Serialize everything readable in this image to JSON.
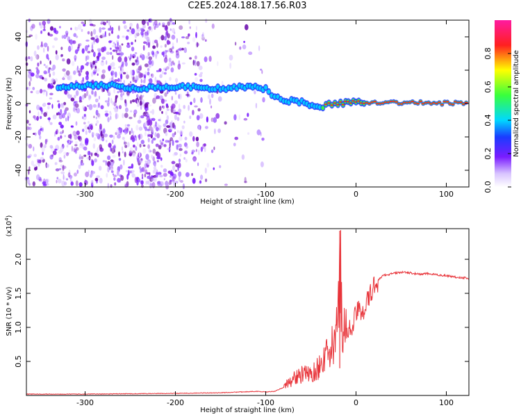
{
  "title": "C2E5.2024.188.17.56.R03",
  "colors": {
    "snr_line": "#e8343a",
    "axes": "#000000",
    "spectrum_base": "#7a1cff"
  },
  "chart_data": [
    {
      "type": "heatmap",
      "name": "spectrogram",
      "xlabel": "Height of straight line (km)",
      "ylabel": "Frequency (Hz)",
      "xlim": [
        -365,
        125
      ],
      "ylim": [
        -50,
        50
      ],
      "xticks": [
        -300,
        -200,
        -100,
        0,
        100
      ],
      "xtick_labels": [
        "-300",
        "-200",
        "-100",
        "0",
        "100"
      ],
      "yticks": [
        40,
        20,
        0,
        -20,
        -40
      ],
      "ytick_labels": [
        "40",
        "20",
        "0",
        "-20",
        "-40"
      ],
      "ridge": [
        {
          "x": -330,
          "y": 10
        },
        {
          "x": -300,
          "y": 11
        },
        {
          "x": -270,
          "y": 11
        },
        {
          "x": -250,
          "y": 9
        },
        {
          "x": -210,
          "y": 10
        },
        {
          "x": -180,
          "y": 10
        },
        {
          "x": -150,
          "y": 9
        },
        {
          "x": -120,
          "y": 10
        },
        {
          "x": -100,
          "y": 9
        },
        {
          "x": -90,
          "y": 4
        },
        {
          "x": -80,
          "y": 2
        },
        {
          "x": -60,
          "y": 1
        },
        {
          "x": -40,
          "y": -3
        },
        {
          "x": -30,
          "y": 0
        },
        {
          "x": -20,
          "y": 0
        },
        {
          "x": 0,
          "y": 1
        },
        {
          "x": 125,
          "y": 0
        }
      ],
      "colorbar": {
        "label": "Normalized spectral amplitude",
        "ticks": [
          0.0,
          0.2,
          0.4,
          0.6,
          0.8
        ],
        "tick_labels": [
          "0.0",
          "0.2",
          "0.4",
          "0.6",
          "0.8"
        ],
        "range": [
          0,
          1
        ]
      }
    },
    {
      "type": "line",
      "name": "snr",
      "xlabel": "Height of straight line (km)",
      "ylabel": "SNR (10 * v/v)",
      "multiplier_label": "(x10",
      "multiplier_exp": "4",
      "multiplier_close": ")",
      "xlim": [
        -365,
        125
      ],
      "ylim": [
        0,
        2.45
      ],
      "xticks": [
        -300,
        -200,
        -100,
        0,
        100
      ],
      "xtick_labels": [
        "-300",
        "-200",
        "-100",
        "0",
        "100"
      ],
      "yticks": [
        0.5,
        1.0,
        1.5,
        2.0
      ],
      "ytick_labels": [
        "0.5",
        "1.0",
        "1.5",
        "2.0"
      ],
      "x": [
        -365,
        -300,
        -200,
        -150,
        -110,
        -100,
        -90,
        -80,
        -70,
        -60,
        -50,
        -45,
        -40,
        -35,
        -30,
        -25,
        -20,
        -18,
        -15,
        -10,
        -5,
        0,
        5,
        10,
        15,
        20,
        25,
        30,
        40,
        50,
        60,
        70,
        80,
        90,
        100,
        110,
        125
      ],
      "values": [
        0.02,
        0.02,
        0.03,
        0.04,
        0.06,
        0.05,
        0.06,
        0.12,
        0.25,
        0.3,
        0.32,
        0.35,
        0.45,
        0.55,
        0.6,
        0.75,
        1.0,
        2.2,
        1.1,
        0.9,
        1.0,
        1.2,
        1.25,
        1.3,
        1.45,
        1.6,
        1.7,
        1.76,
        1.79,
        1.81,
        1.8,
        1.78,
        1.79,
        1.77,
        1.76,
        1.74,
        1.72
      ]
    }
  ]
}
